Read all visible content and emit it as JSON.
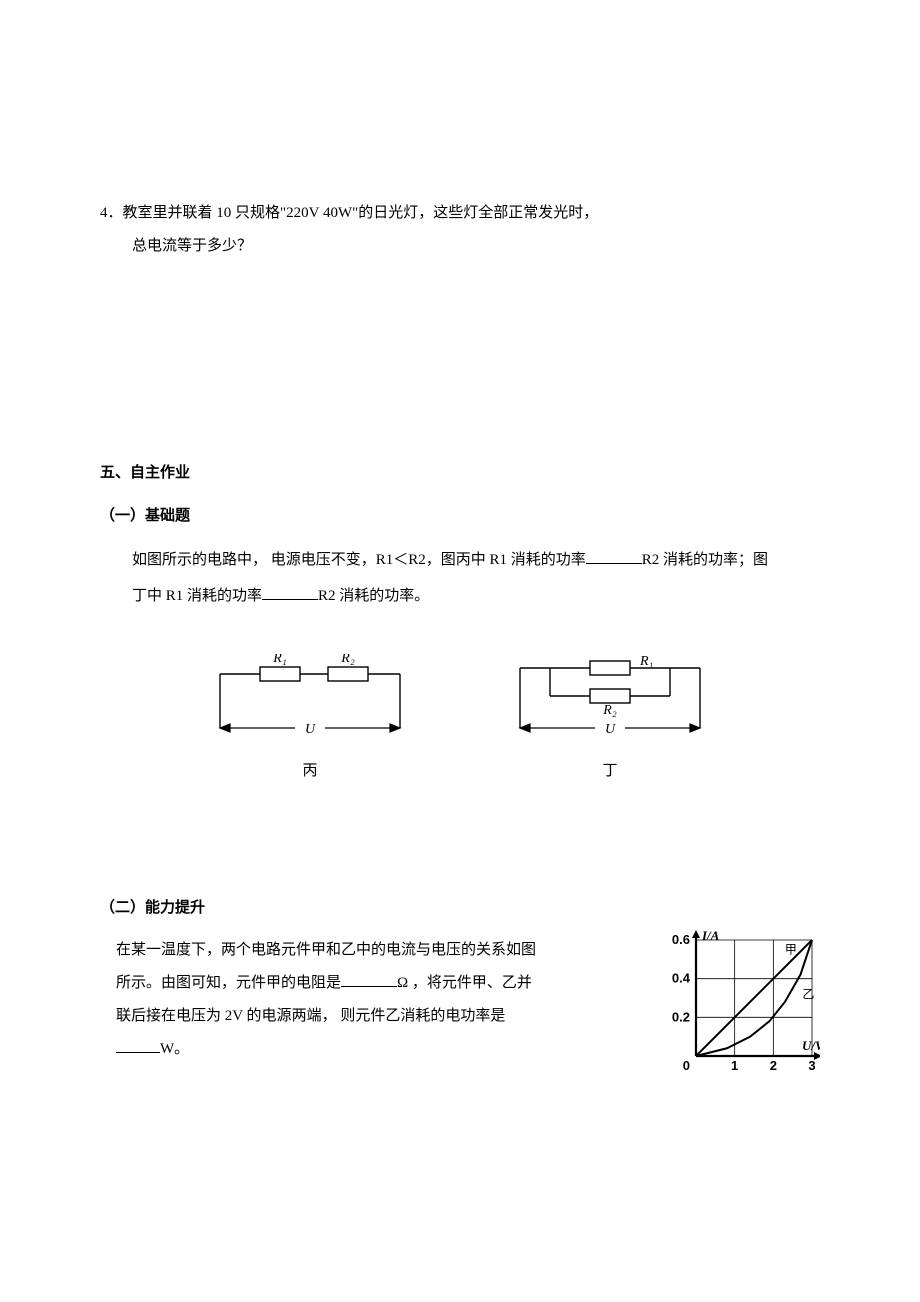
{
  "q4": {
    "label": "4．",
    "line1": "教室里并联着 10 只规格\"220V  40W\"的日光灯，这些灯全部正常发光时，",
    "line2": "总电流等于多少？"
  },
  "section5": {
    "title": "五、自主作业",
    "part1_title": "（一）基础题",
    "part1_body_a": "如图所示的电路中， 电源电压不变，R1＜R2，图丙中 R1 消耗的功率",
    "part1_body_b": "R2 消耗的功率；图",
    "part1_body_c": "丁中 R1 消耗的功率",
    "part1_body_d": "R2 消耗的功率。",
    "diagrams": {
      "bing": {
        "r1": "R₁",
        "r2": "R₂",
        "u": "U",
        "label": "丙",
        "stroke": "#000000",
        "resistor_stroke_width": 1.4,
        "wire_stroke_width": 1.2,
        "font_italic": "italic 14px serif"
      },
      "ding": {
        "r1": "R₁",
        "r2": "R₂",
        "u": "U",
        "label": "丁",
        "stroke": "#000000",
        "resistor_stroke_width": 1.4,
        "wire_stroke_width": 1.2,
        "font_italic": "italic 14px serif"
      }
    },
    "part2_title": "（二）能力提升",
    "part2_body_a": "在某一温度下，两个电路元件甲和乙中的电流与电压的关系如图",
    "part2_body_b": " 所示。由图可知，元件甲的电阻是",
    "part2_body_c": "Ω ，将元件甲、乙并",
    "part2_body_d": "联后接在电压为 2V 的电源两端， 则元件乙消耗的电功率是",
    "part2_body_e": "W。",
    "iv_chart": {
      "type": "line",
      "width": 160,
      "height": 150,
      "xlim": [
        0,
        3
      ],
      "ylim": [
        0,
        0.6
      ],
      "xticks": [
        1,
        2,
        3
      ],
      "yticks": [
        0.2,
        0.4,
        0.6
      ],
      "xlabel": "U/V",
      "ylabel": "I/A",
      "origin_label": "0",
      "jia_label": "甲",
      "yi_label": "乙",
      "background_color": "#ffffff",
      "grid_color": "#000000",
      "axis_color": "#000000",
      "line_color_jia": "#000000",
      "line_color_yi": "#000000",
      "jia_points": [
        [
          0,
          0
        ],
        [
          3,
          0.6
        ]
      ],
      "yi_points": [
        [
          0,
          0
        ],
        [
          0.8,
          0.04
        ],
        [
          1.4,
          0.1
        ],
        [
          1.9,
          0.18
        ],
        [
          2.3,
          0.28
        ],
        [
          2.7,
          0.42
        ],
        [
          3,
          0.6
        ]
      ],
      "label_fontsize": 13,
      "tick_fontsize": 13,
      "line_width": 2
    }
  }
}
